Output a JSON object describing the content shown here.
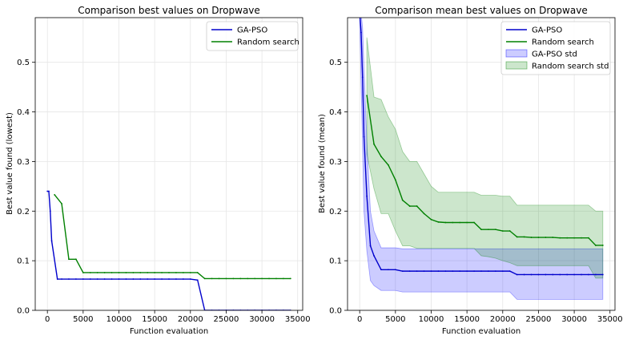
{
  "chart_data": [
    {
      "type": "line",
      "title": "Comparison best values on Dropwave",
      "xlabel": "Function evaluation",
      "ylabel": "Best value found (lowest)",
      "xlim": [
        -1700,
        35700
      ],
      "ylim": [
        0.0,
        0.59
      ],
      "xticks": [
        "0",
        "5000",
        "10000",
        "15000",
        "20000",
        "25000",
        "30000",
        "35000"
      ],
      "yticks": [
        "0.0",
        "0.1",
        "0.2",
        "0.3",
        "0.4",
        "0.5"
      ],
      "grid": true,
      "legend_position": "top-right",
      "series": [
        {
          "name": "GA-PSO",
          "color": "#0000cc",
          "x": [
            0,
            200,
            400,
            600,
            1400,
            2000,
            3000,
            4000,
            5000,
            6000,
            7000,
            8000,
            9000,
            10000,
            11000,
            12000,
            13000,
            14000,
            15000,
            16000,
            17000,
            18000,
            19000,
            20000,
            21000,
            22000,
            23000,
            24000,
            25000,
            26000,
            27000,
            28000,
            29000,
            30000,
            31000,
            32000,
            33000,
            34000
          ],
          "y": [
            0.24,
            0.24,
            0.2,
            0.14,
            0.063,
            0.063,
            0.063,
            0.063,
            0.063,
            0.063,
            0.063,
            0.063,
            0.063,
            0.063,
            0.063,
            0.063,
            0.063,
            0.063,
            0.063,
            0.063,
            0.063,
            0.063,
            0.063,
            0.063,
            0.061,
            0.0,
            0.0,
            0.0,
            0.0,
            0.0,
            0.0,
            0.0,
            0.0,
            0.0,
            0.0,
            0.0,
            0.0,
            0.0
          ]
        },
        {
          "name": "Random search",
          "color": "#008000",
          "x": [
            1000,
            2000,
            3000,
            4000,
            5000,
            6000,
            7000,
            8000,
            9000,
            10000,
            11000,
            12000,
            13000,
            14000,
            15000,
            16000,
            17000,
            18000,
            19000,
            20000,
            21000,
            22000,
            23000,
            24000,
            25000,
            26000,
            27000,
            28000,
            29000,
            30000,
            31000,
            32000,
            33000,
            34000
          ],
          "y": [
            0.233,
            0.215,
            0.103,
            0.103,
            0.076,
            0.076,
            0.076,
            0.076,
            0.076,
            0.076,
            0.076,
            0.076,
            0.076,
            0.076,
            0.076,
            0.076,
            0.076,
            0.076,
            0.076,
            0.076,
            0.076,
            0.064,
            0.064,
            0.064,
            0.064,
            0.064,
            0.064,
            0.064,
            0.064,
            0.064,
            0.064,
            0.064,
            0.064,
            0.064
          ]
        }
      ]
    },
    {
      "type": "line",
      "title": "Comparison mean best values on Dropwave",
      "xlabel": "Function evaluation",
      "ylabel": "Best value found (mean)",
      "xlim": [
        -1700,
        35700
      ],
      "ylim": [
        0.0,
        0.59
      ],
      "xticks": [
        "0",
        "5000",
        "10000",
        "15000",
        "20000",
        "25000",
        "30000",
        "35000"
      ],
      "yticks": [
        "0.0",
        "0.1",
        "0.2",
        "0.3",
        "0.4",
        "0.5"
      ],
      "grid": true,
      "legend_position": "top-right",
      "series": [
        {
          "name": "GA-PSO",
          "color": "#0000cc",
          "x": [
            0,
            200,
            400,
            600,
            1000,
            1500,
            2000,
            3000,
            4000,
            5000,
            6000,
            7000,
            8000,
            9000,
            10000,
            11000,
            12000,
            13000,
            14000,
            15000,
            16000,
            17000,
            18000,
            19000,
            20000,
            21000,
            22000,
            23000,
            24000,
            25000,
            26000,
            27000,
            28000,
            29000,
            30000,
            31000,
            32000,
            33000,
            34000
          ],
          "y": [
            0.6,
            0.56,
            0.47,
            0.35,
            0.23,
            0.13,
            0.11,
            0.082,
            0.082,
            0.082,
            0.079,
            0.079,
            0.079,
            0.079,
            0.079,
            0.079,
            0.079,
            0.079,
            0.079,
            0.079,
            0.079,
            0.079,
            0.079,
            0.079,
            0.079,
            0.079,
            0.072,
            0.072,
            0.072,
            0.072,
            0.072,
            0.072,
            0.072,
            0.072,
            0.072,
            0.072,
            0.072,
            0.072,
            0.072
          ],
          "lower": [
            0.59,
            0.45,
            0.33,
            0.2,
            0.12,
            0.06,
            0.05,
            0.04,
            0.04,
            0.04,
            0.037,
            0.037,
            0.037,
            0.037,
            0.037,
            0.037,
            0.037,
            0.037,
            0.037,
            0.037,
            0.037,
            0.037,
            0.037,
            0.037,
            0.037,
            0.037,
            0.022,
            0.022,
            0.022,
            0.022,
            0.022,
            0.022,
            0.022,
            0.022,
            0.022,
            0.022,
            0.022,
            0.022,
            0.022
          ],
          "upper": [
            0.61,
            0.6,
            0.57,
            0.49,
            0.34,
            0.2,
            0.16,
            0.126,
            0.126,
            0.126,
            0.124,
            0.124,
            0.124,
            0.124,
            0.124,
            0.124,
            0.124,
            0.124,
            0.124,
            0.124,
            0.124,
            0.124,
            0.124,
            0.124,
            0.124,
            0.124,
            0.124,
            0.124,
            0.124,
            0.124,
            0.124,
            0.124,
            0.124,
            0.124,
            0.124,
            0.124,
            0.124,
            0.124,
            0.124
          ]
        },
        {
          "name": "Random search",
          "color": "#008000",
          "x": [
            1000,
            2000,
            3000,
            4000,
            5000,
            6000,
            7000,
            8000,
            9000,
            10000,
            11000,
            12000,
            13000,
            14000,
            15000,
            16000,
            17000,
            18000,
            19000,
            20000,
            21000,
            22000,
            23000,
            24000,
            25000,
            26000,
            27000,
            28000,
            29000,
            30000,
            31000,
            32000,
            33000,
            34000
          ],
          "y": [
            0.433,
            0.335,
            0.31,
            0.293,
            0.263,
            0.222,
            0.21,
            0.21,
            0.195,
            0.183,
            0.178,
            0.177,
            0.177,
            0.177,
            0.177,
            0.177,
            0.163,
            0.163,
            0.163,
            0.16,
            0.16,
            0.148,
            0.148,
            0.147,
            0.147,
            0.147,
            0.147,
            0.146,
            0.146,
            0.146,
            0.146,
            0.146,
            0.131,
            0.131
          ],
          "lower": [
            0.315,
            0.245,
            0.195,
            0.195,
            0.16,
            0.13,
            0.13,
            0.125,
            0.125,
            0.125,
            0.125,
            0.125,
            0.125,
            0.125,
            0.125,
            0.125,
            0.11,
            0.108,
            0.105,
            0.1,
            0.096,
            0.09,
            0.09,
            0.09,
            0.09,
            0.09,
            0.09,
            0.09,
            0.09,
            0.09,
            0.09,
            0.09,
            0.065,
            0.065
          ],
          "upper": [
            0.55,
            0.43,
            0.425,
            0.39,
            0.365,
            0.32,
            0.3,
            0.3,
            0.275,
            0.25,
            0.238,
            0.238,
            0.238,
            0.238,
            0.238,
            0.238,
            0.232,
            0.232,
            0.232,
            0.23,
            0.23,
            0.212,
            0.212,
            0.212,
            0.212,
            0.212,
            0.212,
            0.212,
            0.212,
            0.212,
            0.212,
            0.212,
            0.2,
            0.2
          ]
        }
      ],
      "bands": [
        {
          "name": "GA-PSO std",
          "color": "#0000ff",
          "opacity": 0.2
        },
        {
          "name": "Random search std",
          "color": "#008000",
          "opacity": 0.2
        }
      ]
    }
  ]
}
